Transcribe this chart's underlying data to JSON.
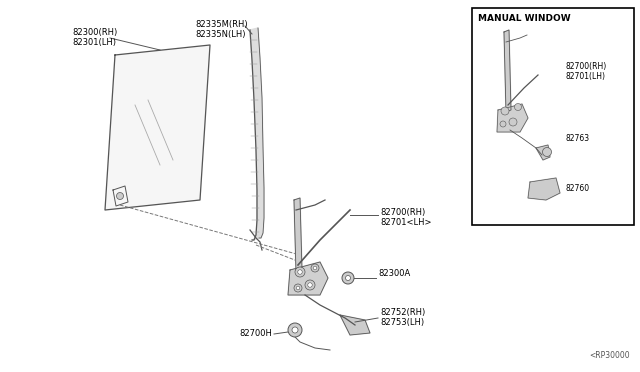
{
  "bg_color": "#ffffff",
  "line_color": "#555555",
  "part_num_color": "#000000",
  "diagram_note": "<RP30000",
  "inset_title": "MANUAL WINDOW",
  "glass_label": "82300(RH)\n82301(LH)",
  "ws_label": "82335M(RH)\n82335N(LH)",
  "reg_label": "82700(RH)\n82701<LH>",
  "bolt_label": "82300A",
  "handle_label": "82752(RH)\n82753(LH)",
  "motor_label": "82700H",
  "inset_reg_label": "82700(RH)\n82701(LH)",
  "inset_p82763": "82763",
  "inset_p82760": "82760"
}
